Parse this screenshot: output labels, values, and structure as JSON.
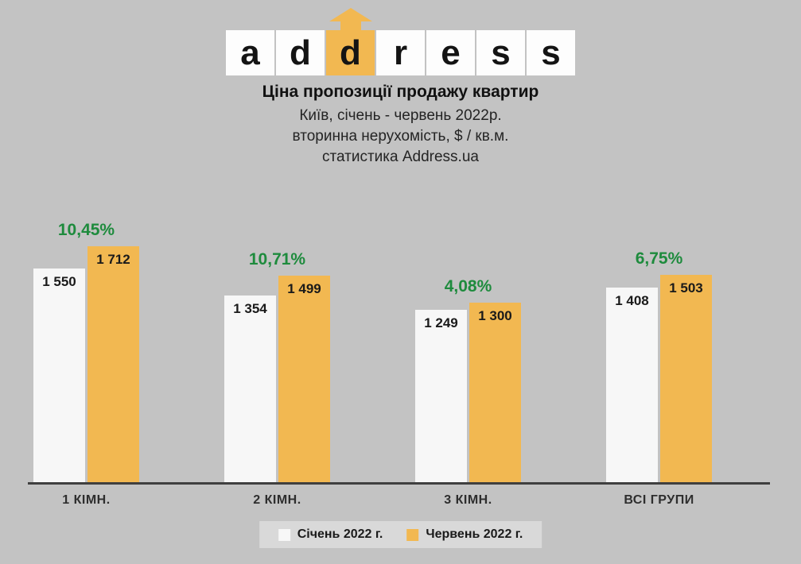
{
  "logo": {
    "letters": [
      "a",
      "d",
      "d",
      "r",
      "e",
      "s",
      "s"
    ],
    "highlight_index": 2,
    "box_color": "#fdfdfd",
    "highlight_color": "#f2b851",
    "arrow_color": "#f2b851"
  },
  "header": {
    "title": "Ціна пропозиції продажу квартир",
    "subtitle_lines": [
      "Київ, січень - червень 2022р.",
      "вторинна нерухомість, $ / кв.м.",
      "статистика Address.ua"
    ]
  },
  "chart_data": {
    "type": "bar",
    "categories": [
      "1 КІМН.",
      "2 КІМН.",
      "3 КІМН.",
      "ВСІ ГРУПИ"
    ],
    "series": [
      {
        "name": "Січень 2022 г.",
        "color": "#f7f7f7",
        "values": [
          1550,
          1354,
          1249,
          1408
        ],
        "labels": [
          "1 550",
          "1 354",
          "1 249",
          "1 408"
        ]
      },
      {
        "name": "Червень 2022 г.",
        "color": "#f2b851",
        "values": [
          1712,
          1499,
          1300,
          1503
        ],
        "labels": [
          "1 712",
          "1 499",
          "1 300",
          "1 503"
        ]
      }
    ],
    "percent_changes": [
      "10,45%",
      "10,71%",
      "4,08%",
      "6,75%"
    ],
    "percent_color": "#1e8b3d",
    "ylim": [
      0,
      1750
    ],
    "grid": false,
    "legend_position": "bottom"
  },
  "legend": {
    "items": [
      {
        "label": "Січень 2022 г.",
        "color": "#f7f7f7"
      },
      {
        "label": "Червень 2022 г.",
        "color": "#f2b851"
      }
    ]
  }
}
